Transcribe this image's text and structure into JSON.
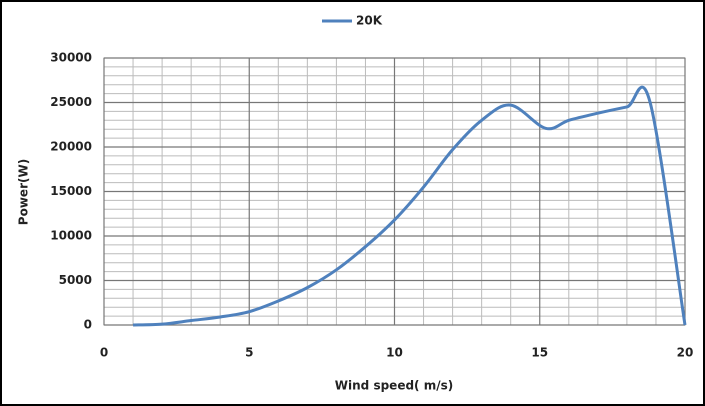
{
  "chart_data": {
    "type": "line",
    "x_label": "Wind speed( m/s)",
    "y_label": "Power(W)",
    "x": [
      1,
      2,
      3,
      4,
      5,
      6,
      7,
      8,
      9,
      10,
      11,
      12,
      13,
      14,
      15.2,
      16,
      17,
      18,
      18.8,
      20
    ],
    "series": [
      {
        "name": "20K",
        "color": "#4f81bd",
        "values": [
          0,
          100,
          500,
          900,
          1500,
          2700,
          4200,
          6200,
          8800,
          11800,
          15500,
          19700,
          23000,
          24700,
          22100,
          23000,
          23800,
          24500,
          25000,
          0
        ]
      }
    ],
    "xlim": [
      0,
      20
    ],
    "xticks": [
      0,
      5,
      10,
      15,
      20
    ],
    "ylim": [
      0,
      30000
    ],
    "yticks": [
      0,
      5000,
      10000,
      15000,
      20000,
      25000,
      30000
    ],
    "grid": true,
    "minor_divisions": 5,
    "legend": "top"
  }
}
